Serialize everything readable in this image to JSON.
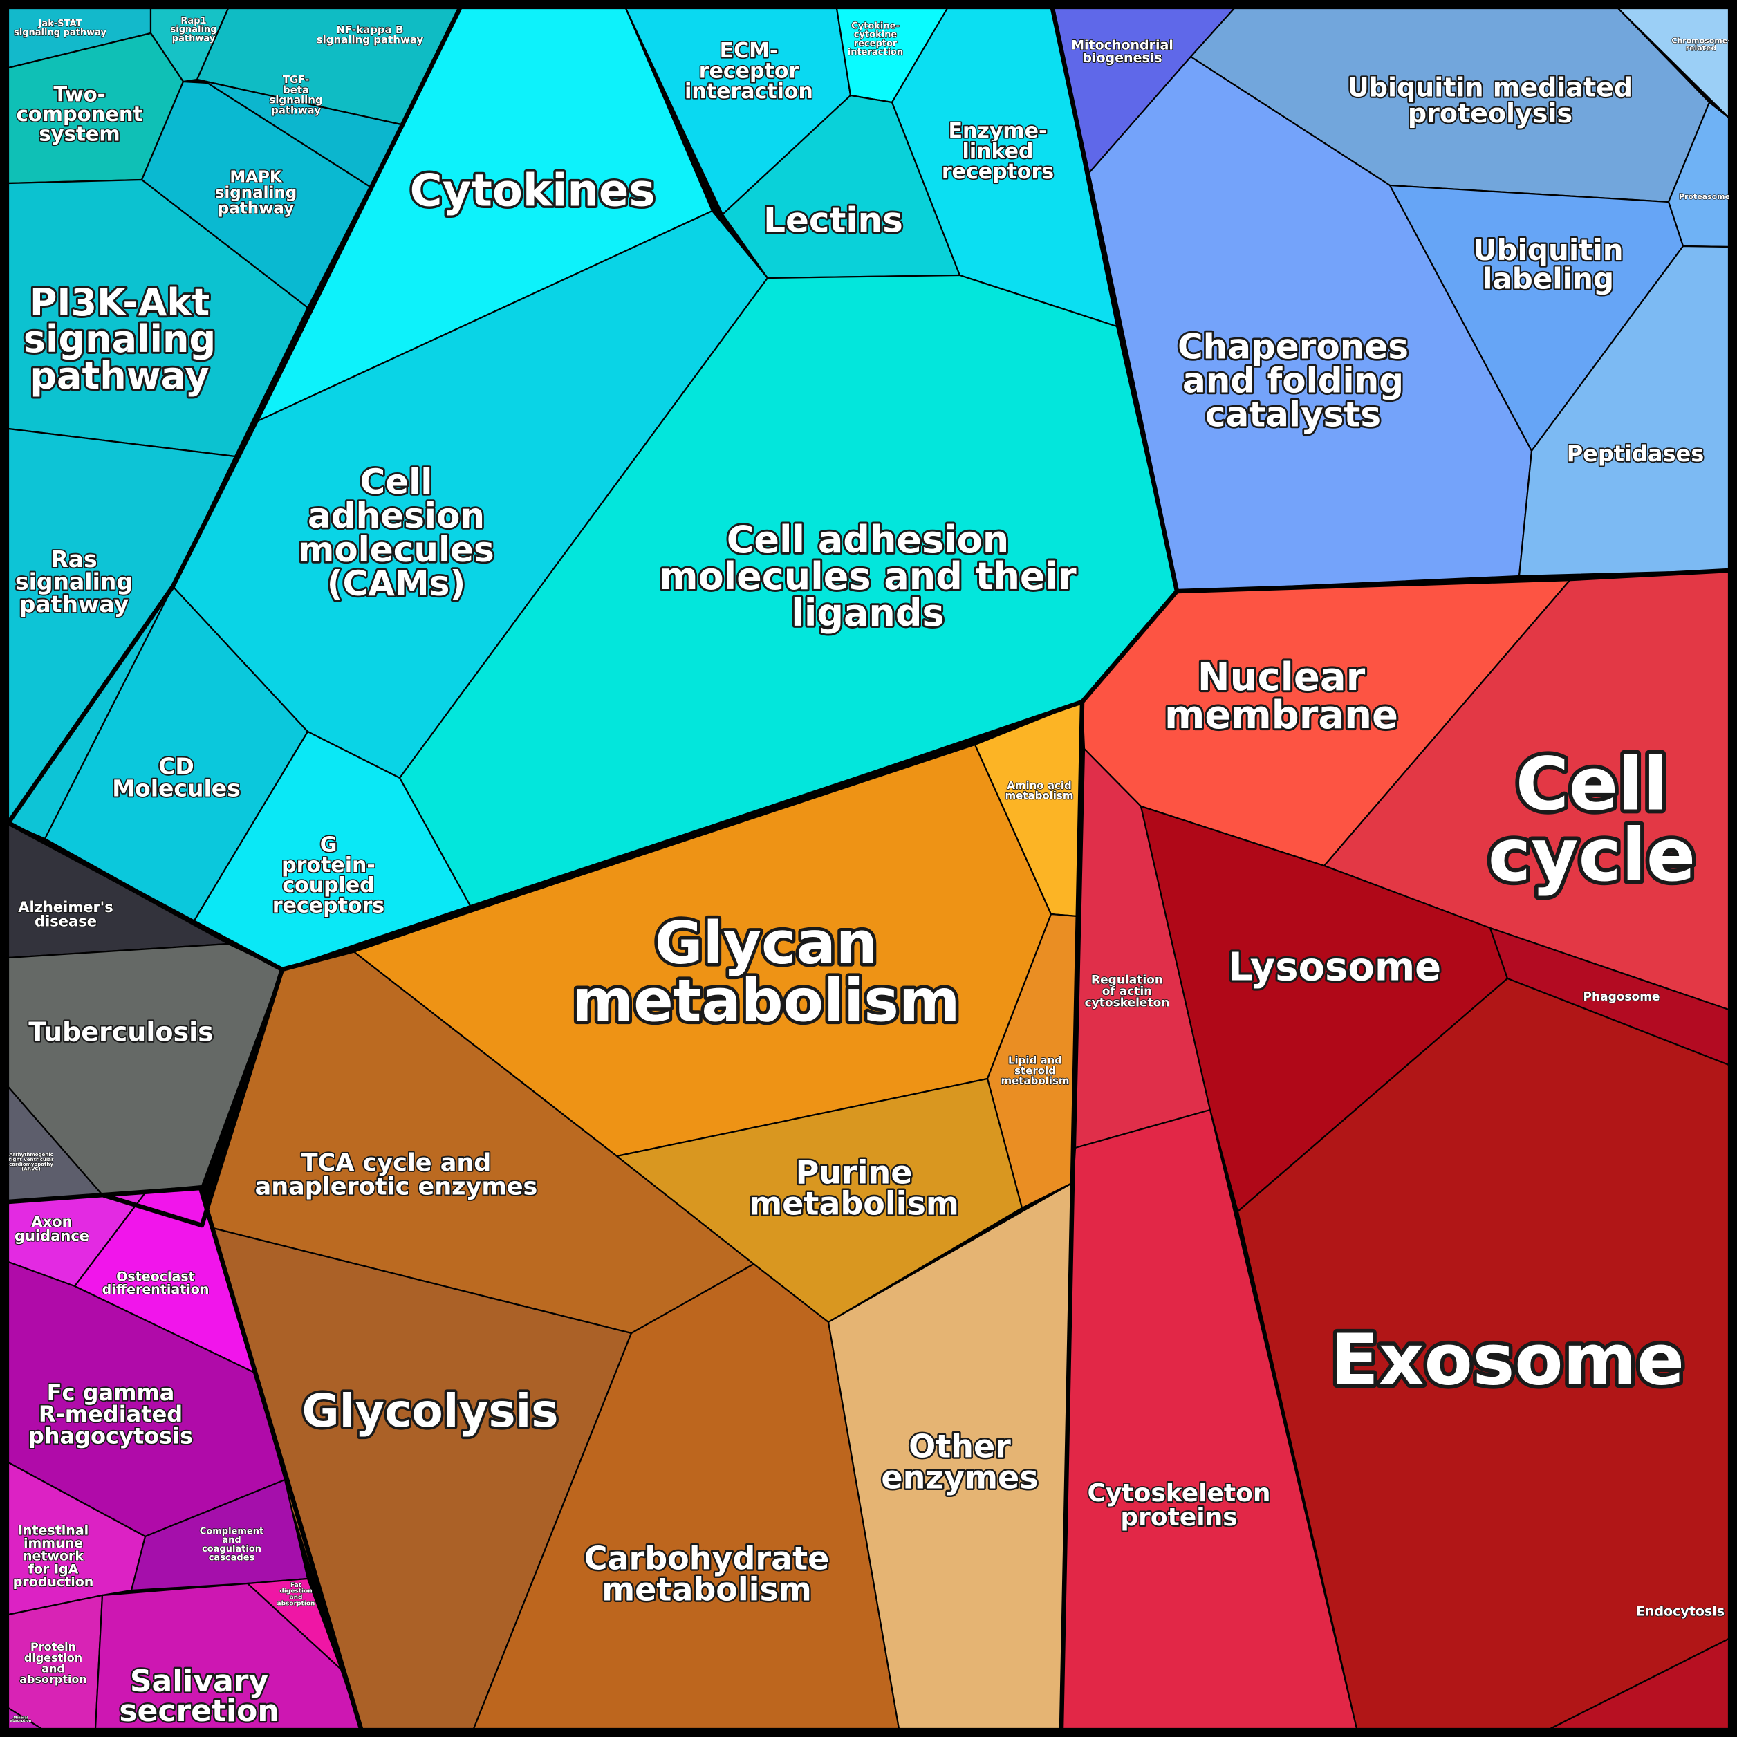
{
  "title": "",
  "cells": [
    {
      "id": "jak-stat",
      "label": "Jak-STAT signaling pathway",
      "lines": [
        "Jak-STAT",
        "signaling pathway"
      ],
      "color": "#13b9cb"
    },
    {
      "id": "rap1",
      "label": "Rap1 signaling pathway",
      "lines": [
        "Rap1",
        "signaling",
        "pathway"
      ],
      "color": "#16c2c6"
    },
    {
      "id": "nf-kappa",
      "label": "NF-kappa B signaling pathway",
      "lines": [
        "NF-kappa B",
        "signaling pathway"
      ],
      "color": "#0fbcc4"
    },
    {
      "id": "two-component",
      "label": "Two-component system",
      "lines": [
        "Two-",
        "component",
        "system"
      ],
      "color": "#0fc0b6"
    },
    {
      "id": "tgf-beta",
      "label": "TGF-beta signaling pathway",
      "lines": [
        "TGF-",
        "beta",
        "signaling",
        "pathway"
      ],
      "color": "#0cb6ce"
    },
    {
      "id": "mapk",
      "label": "MAPK signaling pathway",
      "lines": [
        "MAPK",
        "signaling",
        "pathway"
      ],
      "color": "#0ab9d1"
    },
    {
      "id": "pi3k",
      "label": "PI3K-Akt signaling pathway",
      "lines": [
        "PI3K-Akt",
        "signaling",
        "pathway"
      ],
      "color": "#0cc2d0"
    },
    {
      "id": "ras",
      "label": "Ras signaling pathway",
      "lines": [
        "Ras",
        "signaling",
        "pathway"
      ],
      "color": "#0dc4d6"
    },
    {
      "id": "cd-molecules",
      "label": "CD Molecules",
      "lines": [
        "CD",
        "Molecules"
      ],
      "color": "#0bc8dc"
    },
    {
      "id": "cytokines",
      "label": "Cytokines",
      "lines": [
        "Cytokines"
      ],
      "color": "#0df2fb"
    },
    {
      "id": "ecm",
      "label": "ECM-receptor interaction",
      "lines": [
        "ECM-",
        "receptor",
        "interaction"
      ],
      "color": "#0ad9f1"
    },
    {
      "id": "cytokine-receptor",
      "label": "Cytokine-cytokine receptor interaction",
      "lines": [
        "Cytokine-",
        "cytokine",
        "receptor",
        "interaction"
      ],
      "color": "#0afbff"
    },
    {
      "id": "lectins",
      "label": "Lectins",
      "lines": [
        "Lectins"
      ],
      "color": "#0ad1d9"
    },
    {
      "id": "enzyme-linked",
      "label": "Enzyme-linked receptors",
      "lines": [
        "Enzyme-",
        "linked",
        "receptors"
      ],
      "color": "#0bdff2"
    },
    {
      "id": "cams",
      "label": "Cell adhesion molecules (CAMs)",
      "lines": [
        "Cell",
        "adhesion",
        "molecules",
        "(CAMs)"
      ],
      "color": "#0ad4e6"
    },
    {
      "id": "cam-ligands",
      "label": "Cell adhesion molecules and their ligands",
      "lines": [
        "Cell adhesion",
        "molecules and their",
        "ligands"
      ],
      "color": "#03e6dc"
    },
    {
      "id": "gpcr",
      "label": "G protein-coupled receptors",
      "lines": [
        "G",
        "protein-",
        "coupled",
        "receptors"
      ],
      "color": "#0ae8f6"
    },
    {
      "id": "mitochondrial",
      "label": "Mitochondrial biogenesis",
      "lines": [
        "Mitochondrial",
        "biogenesis"
      ],
      "color": "#5f68e9"
    },
    {
      "id": "chromosome",
      "label": "Chromosome-related",
      "lines": [
        "Chromosome-",
        "related"
      ],
      "color": "#9bcff6"
    },
    {
      "id": "ubiquitin-proteolysis",
      "label": "Ubiquitin mediated proteolysis",
      "lines": [
        "Ubiquitin mediated",
        "proteolysis"
      ],
      "color": "#72a6dc"
    },
    {
      "id": "proteasome",
      "label": "Proteasome",
      "lines": [
        "Proteasome"
      ],
      "color": "#6fb2f5"
    },
    {
      "id": "chaperones",
      "label": "Chaperones and folding catalysts",
      "lines": [
        "Chaperones",
        "and folding",
        "catalysts"
      ],
      "color": "#74a3fa"
    },
    {
      "id": "ubiquitin-labeling",
      "label": "Ubiquitin labeling",
      "lines": [
        "Ubiquitin",
        "labeling"
      ],
      "color": "#66a5f6"
    },
    {
      "id": "peptidases",
      "label": "Peptidases",
      "lines": [
        "Peptidases"
      ],
      "color": "#7cbaf3"
    },
    {
      "id": "nuclear-membrane",
      "label": "Nuclear membrane",
      "lines": [
        "Nuclear",
        "membrane"
      ],
      "color": "#fd5443"
    },
    {
      "id": "cell-cycle",
      "label": "Cell cycle",
      "lines": [
        "Cell",
        "cycle"
      ],
      "color": "#e33845"
    },
    {
      "id": "regulation-actin",
      "label": "Regulation of actin cytoskeleton",
      "lines": [
        "Regulation",
        "of actin",
        "cytoskeleton"
      ],
      "color": "#e02f4a"
    },
    {
      "id": "lysosome",
      "label": "Lysosome",
      "lines": [
        "Lysosome"
      ],
      "color": "#b00818"
    },
    {
      "id": "phagosome",
      "label": "Phagosome",
      "lines": [
        "Phagosome"
      ],
      "color": "#b30b22"
    },
    {
      "id": "exosome",
      "label": "Exosome",
      "lines": [
        "Exosome"
      ],
      "color": "#b11617"
    },
    {
      "id": "cytoskeleton-proteins",
      "label": "Cytoskeleton proteins",
      "lines": [
        "Cytoskeleton",
        "proteins"
      ],
      "color": "#e22747"
    },
    {
      "id": "endocytosis",
      "label": "Endocytosis",
      "lines": [
        "Endocytosis"
      ],
      "color": "#b71022"
    },
    {
      "id": "glycan",
      "label": "Glycan metabolism",
      "lines": [
        "Glycan",
        "metabolism"
      ],
      "color": "#ee9315"
    },
    {
      "id": "amino-acid",
      "label": "Amino acid metabolism",
      "lines": [
        "Amino acid",
        "metabolism"
      ],
      "color": "#fcb425"
    },
    {
      "id": "lipid-steroid",
      "label": "Lipid and steroid metabolism",
      "lines": [
        "Lipid and",
        "steroid",
        "metabolism"
      ],
      "color": "#ea8e23"
    },
    {
      "id": "purine",
      "label": "Purine metabolism",
      "lines": [
        "Purine",
        "metabolism"
      ],
      "color": "#d99720"
    },
    {
      "id": "tca",
      "label": "TCA cycle and anaplerotic enzymes",
      "lines": [
        "TCA cycle and",
        "anaplerotic enzymes"
      ],
      "color": "#bb6a21"
    },
    {
      "id": "glycolysis",
      "label": "Glycolysis",
      "lines": [
        "Glycolysis"
      ],
      "color": "#ab6127"
    },
    {
      "id": "carbohydrate",
      "label": "Carbohydrate metabolism",
      "lines": [
        "Carbohydrate",
        "metabolism"
      ],
      "color": "#bd661e"
    },
    {
      "id": "other-enzymes",
      "label": "Other enzymes",
      "lines": [
        "Other",
        "enzymes"
      ],
      "color": "#e5b473"
    },
    {
      "id": "alzheimers",
      "label": "Alzheimer's disease",
      "lines": [
        "Alzheimer's",
        "disease"
      ],
      "color": "#33333c"
    },
    {
      "id": "tuberculosis",
      "label": "Tuberculosis",
      "lines": [
        "Tuberculosis"
      ],
      "color": "#656966"
    },
    {
      "id": "arvc",
      "label": "Arrhythmogenic right ventricular cardiomyopathy (ARVC)",
      "lines": [
        "Arrhythmogenic",
        "right ventricular",
        "cardiomyopathy",
        "(ARVC)"
      ],
      "color": "#5d5e6c"
    },
    {
      "id": "axon",
      "label": "Axon guidance",
      "lines": [
        "Axon",
        "guidance"
      ],
      "color": "#e32ae2"
    },
    {
      "id": "osteoclast",
      "label": "Osteoclast differentiation",
      "lines": [
        "Osteoclast",
        "differentiation"
      ],
      "color": "#f115eb"
    },
    {
      "id": "fc-gamma",
      "label": "Fc gamma R-mediated phagocytosis",
      "lines": [
        "Fc gamma",
        "R-mediated",
        "phagocytosis"
      ],
      "color": "#b00ba9"
    },
    {
      "id": "intestinal",
      "label": "Intestinal immune network for IgA production",
      "lines": [
        "Intestinal",
        "immune",
        "network",
        "for IgA",
        "production"
      ],
      "color": "#dc22c4"
    },
    {
      "id": "complement",
      "label": "Complement and coagulation cascades",
      "lines": [
        "Complement",
        "and",
        "coagulation",
        "cascades"
      ],
      "color": "#a50fab"
    },
    {
      "id": "fat-digestion",
      "label": "Fat digestion and absorption",
      "lines": [
        "Fat",
        "digestion",
        "and",
        "absorption"
      ],
      "color": "#ef16a5"
    },
    {
      "id": "protein-digestion",
      "label": "Protein digestion and absorption",
      "lines": [
        "Protein",
        "digestion",
        "and",
        "absorption"
      ],
      "color": "#d823b5"
    },
    {
      "id": "salivary",
      "label": "Salivary secretion",
      "lines": [
        "Salivary",
        "secretion"
      ],
      "color": "#cd17b2"
    },
    {
      "id": "mineral",
      "label": "Mineral absorption",
      "lines": [
        "Mineral",
        "absorption"
      ],
      "color": "#c11bb7"
    }
  ]
}
